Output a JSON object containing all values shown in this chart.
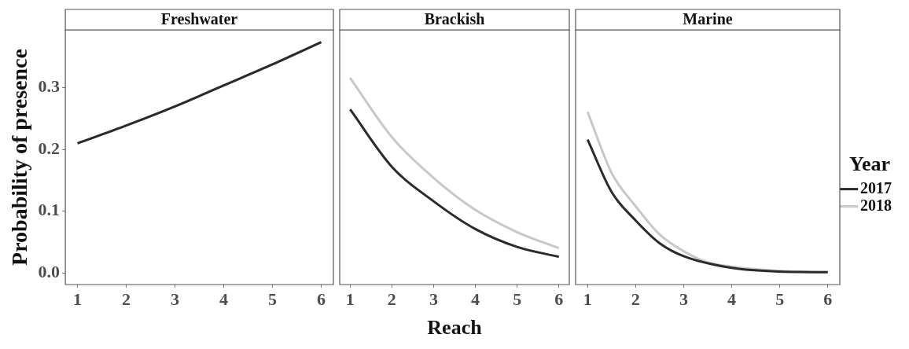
{
  "chart_data": [
    {
      "type": "line",
      "title": "Freshwater",
      "ylabel": "Probability of presence",
      "xlim": [
        0.75,
        6.25
      ],
      "xticks": [
        1,
        2,
        3,
        4,
        5,
        6
      ],
      "ylim": [
        -0.019,
        0.394
      ],
      "yticks": [
        {
          "value": 0,
          "label": "0.0"
        },
        {
          "value": 0.1,
          "label": "0.1"
        },
        {
          "value": 0.2,
          "label": "0.2"
        },
        {
          "value": 0.3,
          "label": "0.3"
        }
      ],
      "grid": false,
      "legend": false,
      "series": [
        {
          "color": "#2b2b2b",
          "x": [
            1,
            2,
            3,
            4,
            5,
            6
          ],
          "values": [
            0.21,
            0.239,
            0.27,
            0.304,
            0.338,
            0.374
          ]
        },
        {
          "color": "#c8c8c8",
          "x": [
            1,
            2,
            3,
            4,
            5,
            6
          ],
          "values": [
            0.21,
            0.239,
            0.27,
            0.304,
            0.338,
            0.374
          ]
        }
      ]
    },
    {
      "type": "line",
      "title": "Brackish",
      "xlabel": "Reach",
      "xlim": [
        0.75,
        6.25
      ],
      "xticks": [
        1,
        2,
        3,
        4,
        5,
        6
      ],
      "ylim": [
        -0.019,
        0.394
      ],
      "tick_labels": "x",
      "grid": false,
      "legend": false,
      "series": [
        {
          "color": "#2b2b2b",
          "x": [
            1,
            2,
            3,
            4,
            5,
            6
          ],
          "values": [
            0.265,
            0.172,
            0.116,
            0.071,
            0.042,
            0.026
          ]
        },
        {
          "color": "#c8c8c8",
          "x": [
            1,
            2,
            3,
            4,
            5,
            6
          ],
          "values": [
            0.316,
            0.22,
            0.154,
            0.102,
            0.066,
            0.04
          ]
        }
      ]
    },
    {
      "type": "line",
      "title": "Marine",
      "legend_title": "Year",
      "xlim": [
        0.75,
        6.25
      ],
      "xticks": [
        1,
        2,
        3,
        4,
        5,
        6
      ],
      "ylim": [
        -0.019,
        0.394
      ],
      "tick_labels": "x",
      "grid": false,
      "legend": "right",
      "series": [
        {
          "name": "2017",
          "color": "#2b2b2b",
          "x": [
            1,
            1.5,
            2,
            2.5,
            3,
            4,
            5,
            6
          ],
          "values": [
            0.216,
            0.131,
            0.085,
            0.048,
            0.027,
            0.008,
            0.002,
            0.001
          ]
        },
        {
          "name": "2018",
          "color": "#c8c8c8",
          "x": [
            1,
            1.5,
            2,
            2.5,
            3,
            3.5,
            4,
            5,
            6
          ],
          "values": [
            0.261,
            0.162,
            0.108,
            0.062,
            0.035,
            0.017,
            0.01,
            0.003,
            0.001
          ]
        }
      ]
    }
  ]
}
